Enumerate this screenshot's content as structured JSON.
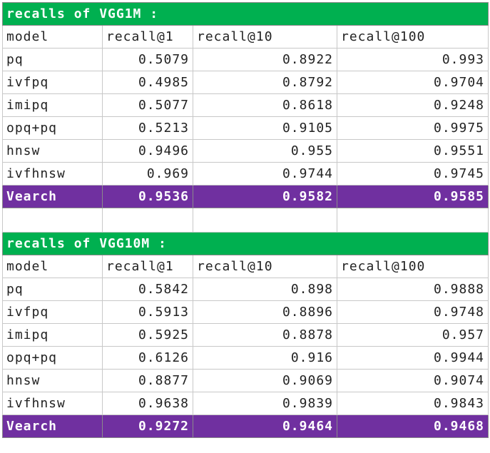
{
  "tables": [
    {
      "title": "recalls of VGG1M :",
      "headers": [
        "model",
        "recall@1",
        "recall@10",
        "recall@100"
      ],
      "rows": [
        [
          "pq",
          "0.5079",
          "0.8922",
          "0.993"
        ],
        [
          "ivfpq",
          "0.4985",
          "0.8792",
          "0.9704"
        ],
        [
          "imipq",
          "0.5077",
          "0.8618",
          "0.9248"
        ],
        [
          "opq+pq",
          "0.5213",
          "0.9105",
          "0.9975"
        ],
        [
          "hnsw",
          "0.9496",
          "0.955",
          "0.9551"
        ],
        [
          "ivfhnsw",
          "0.969",
          "0.9744",
          "0.9745"
        ]
      ],
      "highlight": [
        "Vearch",
        "0.9536",
        "0.9582",
        "0.9585"
      ]
    },
    {
      "title": "recalls of VGG10M :",
      "headers": [
        "model",
        "recall@1",
        "recall@10",
        "recall@100"
      ],
      "rows": [
        [
          "pq",
          "0.5842",
          "0.898",
          "0.9888"
        ],
        [
          "ivfpq",
          "0.5913",
          "0.8896",
          "0.9748"
        ],
        [
          "imipq",
          "0.5925",
          "0.8878",
          "0.957"
        ],
        [
          "opq+pq",
          "0.6126",
          "0.916",
          "0.9944"
        ],
        [
          "hnsw",
          "0.8877",
          "0.9069",
          "0.9074"
        ],
        [
          "ivfhnsw",
          "0.9638",
          "0.9839",
          "0.9843"
        ]
      ],
      "highlight": [
        "Vearch",
        "0.9272",
        "0.9464",
        "0.9468"
      ]
    }
  ],
  "colors": {
    "title_bg": "#00b050",
    "highlight_bg": "#7030a0",
    "grid": "#c8c8c8"
  }
}
